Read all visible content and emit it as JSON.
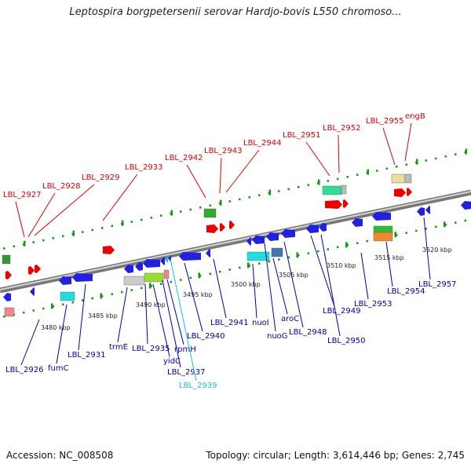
{
  "title": "Leptospira borgpetersenii serovar Hardjo-bovis L550 chromoso...",
  "footer": {
    "accession": "Accession: NC_008508",
    "summary": "Topology: circular; Length: 3,614,446 bp; Genes: 2,745"
  },
  "colors": {
    "upper_label": "#dd0000",
    "lower_label": "#0000aa",
    "highlight_label": "#22bbdd",
    "tick_mark": "#119911",
    "backbone": "#888888"
  },
  "kbp_ticks": [
    "3480 kbp",
    "3485 kbp",
    "3490 kbp",
    "3495 kbp",
    "3500 kbp",
    "3505 kbp",
    "3510 kbp",
    "3515 kbp",
    "3520 kbp"
  ],
  "upper_labels": [
    "LBL_2927",
    "LBL_2928",
    "LBL_2929",
    "LBL_2933",
    "LBL_2942",
    "LBL_2943",
    "LBL_2944",
    "LBL_2951",
    "LBL_2952",
    "LBL_2955",
    "engB"
  ],
  "lower_labels": [
    "LBL_2926",
    "fumC",
    "LBL_2931",
    "trmE",
    "LBL_2935",
    "yidC",
    "LBL_2937",
    "rpmH",
    "LBL_2939",
    "LBL_2940",
    "LBL_2941",
    "nuoI",
    "nuoG",
    "aroC",
    "LBL_2948",
    "LBL_2949",
    "LBL_2950",
    "LBL_2953",
    "LBL_2954",
    "LBL_2957"
  ],
  "highlighted_label": "LBL_2939"
}
